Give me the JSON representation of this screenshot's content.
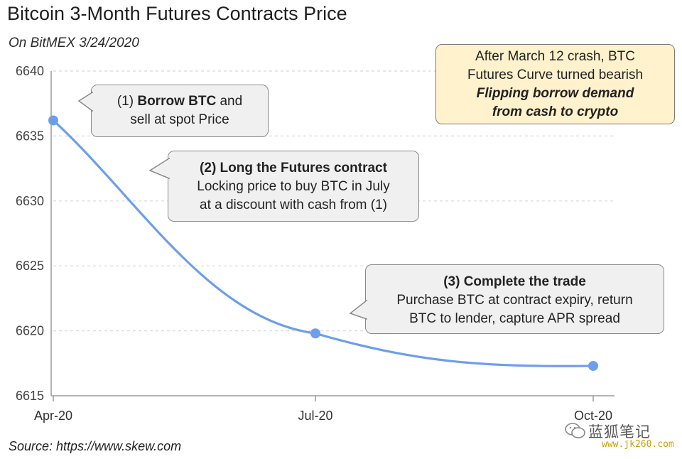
{
  "title": "Bitcoin 3-Month Futures Contracts Price",
  "subtitle": "On BitMEX 3/24/2020",
  "source": "Source: https://www.skew.com",
  "chart_data": {
    "type": "line",
    "title": "Bitcoin 3-Month Futures Contracts Price",
    "subtitle": "On BitMEX 3/24/2020",
    "categories": [
      "Apr-20",
      "Jul-20",
      "Oct-20"
    ],
    "values": [
      6636.2,
      6619.8,
      6617.3
    ],
    "ylim": [
      6615,
      6640
    ],
    "yticks": [
      6615,
      6620,
      6625,
      6630,
      6635,
      6640
    ],
    "grid": true,
    "line_color": "#6d9eeb"
  },
  "callouts": {
    "c1": {
      "l1_bold": "Borrow BTC",
      "l1_pre": "(1) ",
      "l1_post": " and",
      "l2": "sell at spot Price"
    },
    "c2": {
      "l1": "(2) Long the Futures contract",
      "l2": "Locking price to buy BTC in July",
      "l3": "at a discount with cash from (1)"
    },
    "c3": {
      "l1": "(3) Complete the trade",
      "l2": "Purchase BTC at contract expiry, return",
      "l3": "BTC to lender, capture APR spread"
    },
    "c4": {
      "l1": "After March 12 crash, BTC",
      "l2": "Futures Curve turned bearish",
      "l3": "Flipping borrow demand",
      "l4": "from cash to crypto"
    }
  },
  "watermark": {
    "name": "蓝狐笔记",
    "url": "www.jk260.com"
  }
}
